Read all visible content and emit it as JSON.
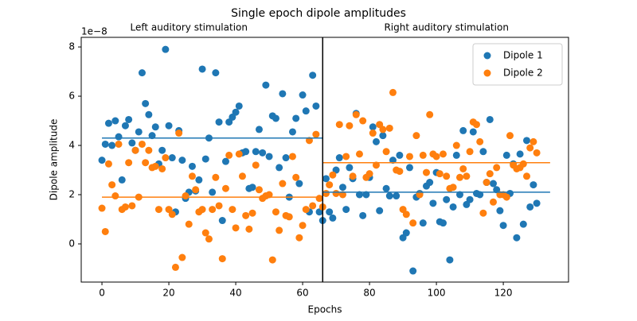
{
  "chart_data": {
    "type": "scatter",
    "title": "Single epoch dipole amplitudes",
    "xlabel": "Epochs",
    "ylabel": "Dipole amplitude",
    "y_offset_label": "1e−8",
    "annotations": [
      {
        "text": "Left auditory stimulation",
        "x": 26
      },
      {
        "text": "Right auditory stimulation",
        "x": 103
      }
    ],
    "x": [
      0,
      1,
      2,
      3,
      4,
      5,
      6,
      7,
      8,
      9,
      10,
      11,
      12,
      13,
      14,
      15,
      16,
      17,
      18,
      19,
      20,
      21,
      22,
      23,
      24,
      25,
      26,
      27,
      28,
      29,
      30,
      31,
      32,
      33,
      34,
      35,
      36,
      37,
      38,
      39,
      40,
      41,
      42,
      43,
      44,
      45,
      46,
      47,
      48,
      49,
      50,
      51,
      52,
      53,
      54,
      55,
      56,
      57,
      58,
      59,
      60,
      61,
      62,
      63,
      64,
      65,
      66,
      67,
      68,
      69,
      70,
      71,
      72,
      73,
      74,
      75,
      76,
      77,
      78,
      79,
      80,
      81,
      82,
      83,
      84,
      85,
      86,
      87,
      88,
      89,
      90,
      91,
      92,
      93,
      94,
      95,
      96,
      97,
      98,
      99,
      100,
      101,
      102,
      103,
      104,
      105,
      106,
      107,
      108,
      109,
      110,
      111,
      112,
      113,
      114,
      115,
      116,
      117,
      118,
      119,
      120,
      121,
      122,
      123,
      124,
      125,
      126,
      127,
      128,
      129,
      130
    ],
    "series": [
      {
        "name": "Dipole 1",
        "color": "#1f77b4",
        "values": [
          3.4,
          4.05,
          4.9,
          4.0,
          5.0,
          4.35,
          2.6,
          4.8,
          5.05,
          4.1,
          3.8,
          4.55,
          6.95,
          5.7,
          5.25,
          4.4,
          4.75,
          3.25,
          3.8,
          7.9,
          4.8,
          3.5,
          1.3,
          4.6,
          3.4,
          1.85,
          2.1,
          3.15,
          2.15,
          2.6,
          7.1,
          3.45,
          4.3,
          2.1,
          6.95,
          4.95,
          0.95,
          3.35,
          4.95,
          5.15,
          5.35,
          5.6,
          3.7,
          3.75,
          2.25,
          2.3,
          3.75,
          4.65,
          3.7,
          6.45,
          3.55,
          5.2,
          5.1,
          3.1,
          6.1,
          3.5,
          1.9,
          4.55,
          5.1,
          2.45,
          6.05,
          5.4,
          1.3,
          6.85,
          5.6,
          1.3,
          0.95,
          2.65,
          1.3,
          1.05,
          3.0,
          3.5,
          2.3,
          1.4,
          3.1,
          2.65,
          5.3,
          2.0,
          1.15,
          2.0,
          2.7,
          4.75,
          4.15,
          1.35,
          4.4,
          2.25,
          1.95,
          3.4,
          1.95,
          3.6,
          0.25,
          0.45,
          3.1,
          -1.1,
          1.9,
          2.05,
          0.85,
          2.35,
          2.5,
          1.65,
          2.9,
          0.9,
          0.85,
          1.8,
          -0.65,
          1.5,
          3.6,
          2.0,
          4.6,
          1.6,
          1.8,
          4.55,
          2.05,
          2.0,
          3.75,
          2.5,
          5.05,
          2.45,
          2.2,
          1.35,
          0.75,
          3.6,
          2.05,
          3.25,
          0.25,
          3.65,
          0.8,
          4.2,
          1.5,
          2.4,
          1.65
        ]
      },
      {
        "name": "Dipole 2",
        "color": "#ff7f0e",
        "values": [
          1.45,
          0.5,
          3.25,
          2.4,
          1.95,
          4.05,
          1.4,
          1.5,
          3.3,
          1.55,
          3.8,
          1.9,
          4.05,
          3.3,
          3.8,
          3.1,
          3.15,
          1.4,
          3.05,
          3.5,
          1.4,
          1.2,
          -0.95,
          4.5,
          -0.55,
          1.95,
          0.8,
          2.75,
          2.2,
          1.3,
          1.4,
          0.45,
          0.2,
          1.4,
          2.7,
          1.55,
          -0.6,
          2.25,
          3.6,
          1.4,
          0.65,
          3.65,
          2.75,
          1.15,
          0.6,
          1.25,
          3.2,
          2.2,
          1.85,
          1.95,
          2.0,
          -0.65,
          1.3,
          0.55,
          2.45,
          1.15,
          1.1,
          3.55,
          2.7,
          0.25,
          0.75,
          1.4,
          4.2,
          1.55,
          4.45,
          1.85,
          1.5,
          2.05,
          2.4,
          2.8,
          2.05,
          4.85,
          2.0,
          3.55,
          4.8,
          2.75,
          5.25,
          3.65,
          5.0,
          2.7,
          2.85,
          4.5,
          3.2,
          4.85,
          4.65,
          3.75,
          4.7,
          6.15,
          3.0,
          2.95,
          1.4,
          1.2,
          3.55,
          0.85,
          4.4,
          2.0,
          3.6,
          2.9,
          5.25,
          3.65,
          3.55,
          2.85,
          3.65,
          2.75,
          2.25,
          2.3,
          4.0,
          2.7,
          3.05,
          2.75,
          3.75,
          4.95,
          4.85,
          4.15,
          1.25,
          2.5,
          2.85,
          1.7,
          3.1,
          2.0,
          2.0,
          1.9,
          4.4,
          3.2,
          3.05,
          3.1,
          3.25,
          2.75,
          3.9,
          4.15,
          3.7
        ]
      }
    ],
    "mean_lines": [
      {
        "color": "#1f77b4",
        "x": [
          0,
          66
        ],
        "value": 4.3
      },
      {
        "color": "#1f77b4",
        "x": [
          66,
          134
        ],
        "value": 2.1
      },
      {
        "color": "#ff7f0e",
        "x": [
          0,
          66
        ],
        "value": 1.9
      },
      {
        "color": "#ff7f0e",
        "x": [
          66,
          134
        ],
        "value": 3.3
      }
    ],
    "divider_x": 66,
    "xlim": [
      -6.2,
      139.5
    ],
    "ylim": [
      -1.55,
      8.39
    ],
    "xticks": [
      0,
      20,
      40,
      60,
      80,
      100,
      120
    ],
    "yticks": [
      0,
      2,
      4,
      6,
      8
    ],
    "legend": "upper right"
  }
}
